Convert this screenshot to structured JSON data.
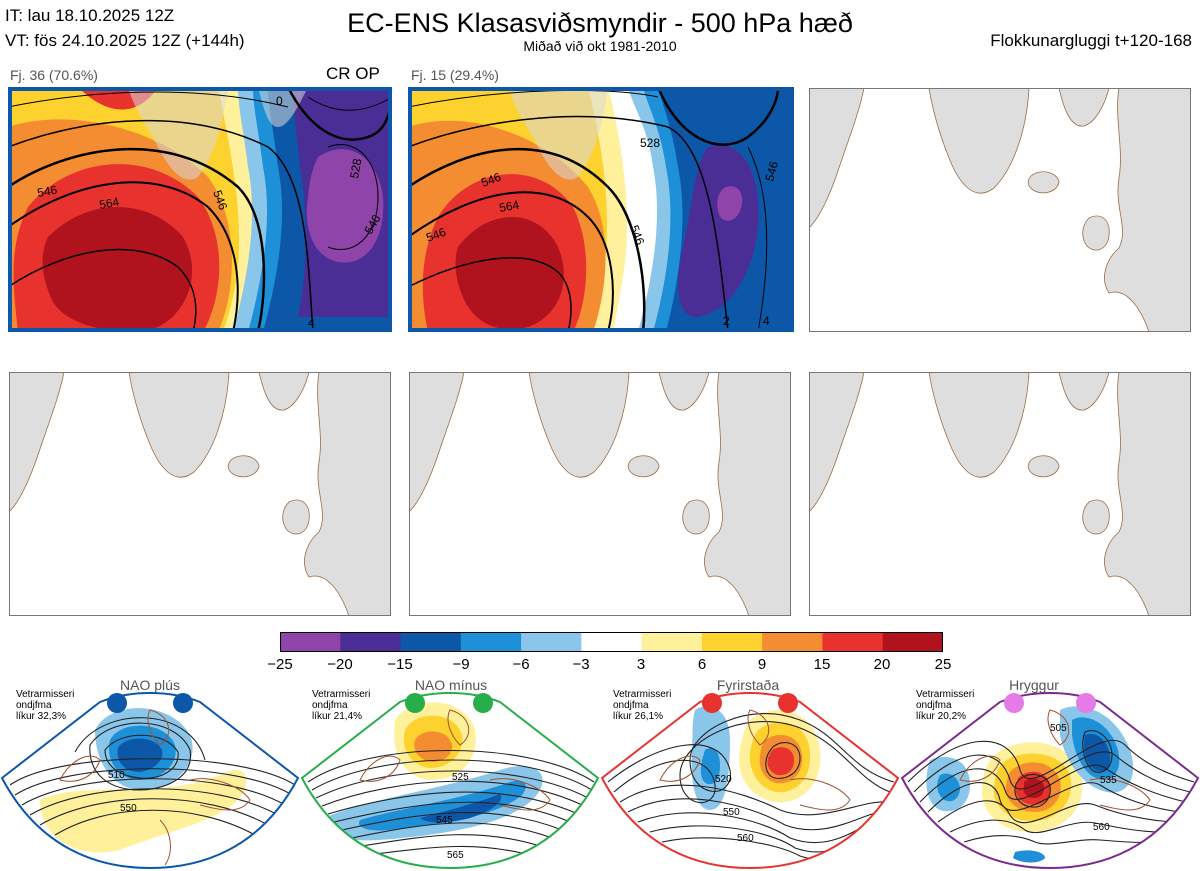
{
  "header": {
    "it": "IT: lau 18.10.2025 12Z",
    "vt": "VT: fös 24.10.2025 12Z  (+144h)",
    "title": "EC-ENS Klasasviðsmyndir - 500 hPa hæð",
    "subtitle": "Miðað við okt 1981-2010",
    "window": "Flokkunargluggi t+120-168"
  },
  "panels": {
    "p1": {
      "label": "Fj. 36 (70.6%)",
      "tag": "CR OP",
      "contours": [
        "546",
        "564",
        "546",
        "0",
        "528",
        "546",
        "4"
      ]
    },
    "p2": {
      "label": "Fj. 15 (29.4%)",
      "contours": [
        "546",
        "546",
        "564",
        "528",
        "546",
        "546",
        "2",
        "4"
      ]
    }
  },
  "colorbar": {
    "ticks": [
      "−25",
      "−20",
      "−15",
      "−9",
      "−6",
      "−3",
      "3",
      "6",
      "9",
      "15",
      "20",
      "25"
    ],
    "colors": [
      "#8e44a8",
      "#4a2e96",
      "#0d57a8",
      "#1e90d8",
      "#8ac6ea",
      "#ffffff",
      "#fff19c",
      "#fdd12e",
      "#f48c32",
      "#e8322e",
      "#b0131e"
    ]
  },
  "regimes": [
    {
      "name": "NAO plús",
      "note1": "Vetrarmisseri",
      "note2": "ondjfma",
      "note3": "líkur 32,3%",
      "dot": "#0d57a8",
      "border": "#0d57a8",
      "c1": "510",
      "c2": "550"
    },
    {
      "name": "NAO mínus",
      "note1": "Vetrarmisseri",
      "note2": "ondjfma",
      "note3": "líkur 21,4%",
      "dot": "#27ae4a",
      "border": "#27ae4a",
      "c1": "525",
      "c2": "545",
      "c3": "565"
    },
    {
      "name": "Fyrirstaða",
      "note1": "Vetrarmisseri",
      "note2": "ondjfma",
      "note3": "líkur 26,1%",
      "dot": "#e8322e",
      "border": "#e8322e",
      "c1": "520",
      "c2": "550",
      "c3": "560"
    },
    {
      "name": "Hryggur",
      "note1": "Vetrarmisseri",
      "note2": "ondjfma",
      "note3": "líkur 20,2%",
      "dot": "#e67ae6",
      "border": "#7b2a8e",
      "c1": "505",
      "c2": "535",
      "c3": "560"
    }
  ]
}
